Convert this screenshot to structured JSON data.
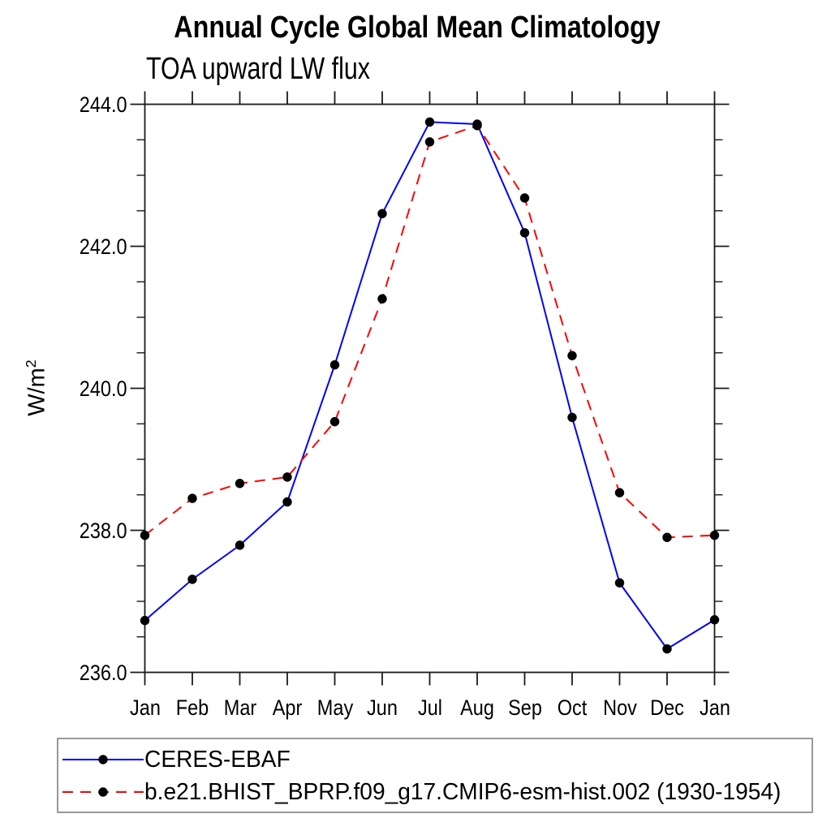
{
  "chart_data": {
    "type": "line",
    "title": "Annual Cycle Global Mean Climatology",
    "subtitle": "TOA upward LW flux",
    "ylabel_base": "W/m",
    "ylabel_sup": "2",
    "categories": [
      "Jan",
      "Feb",
      "Mar",
      "Apr",
      "May",
      "Jun",
      "Jul",
      "Aug",
      "Sep",
      "Oct",
      "Nov",
      "Dec",
      "Jan"
    ],
    "ylim": [
      236.0,
      244.0
    ],
    "ytick_major": [
      236.0,
      238.0,
      240.0,
      242.0,
      244.0
    ],
    "ytick_labels": [
      "236.0",
      "238.0",
      "240.0",
      "242.0",
      "244.0"
    ],
    "ytick_minor_step": 0.5,
    "grid": "off",
    "legend_position": "bottom",
    "axis_color": "#1a1a1a",
    "marker_color": "#000000",
    "series": [
      {
        "name": "CERES-EBAF",
        "color": "#0000ff",
        "style": "solid",
        "marker": "circle",
        "values": [
          236.73,
          237.31,
          237.79,
          238.4,
          240.33,
          242.46,
          243.75,
          243.72,
          242.19,
          239.59,
          237.26,
          236.33,
          236.74
        ]
      },
      {
        "name": "b.e21.BHIST_BPRP.f09_g17.CMIP6-esm-hist.002 (1930-1954)",
        "color": "#ff0000",
        "style": "dashed",
        "marker": "circle",
        "values": [
          237.93,
          238.45,
          238.66,
          238.75,
          239.53,
          241.26,
          243.47,
          243.7,
          242.68,
          240.46,
          238.53,
          237.9,
          237.93
        ]
      }
    ]
  }
}
